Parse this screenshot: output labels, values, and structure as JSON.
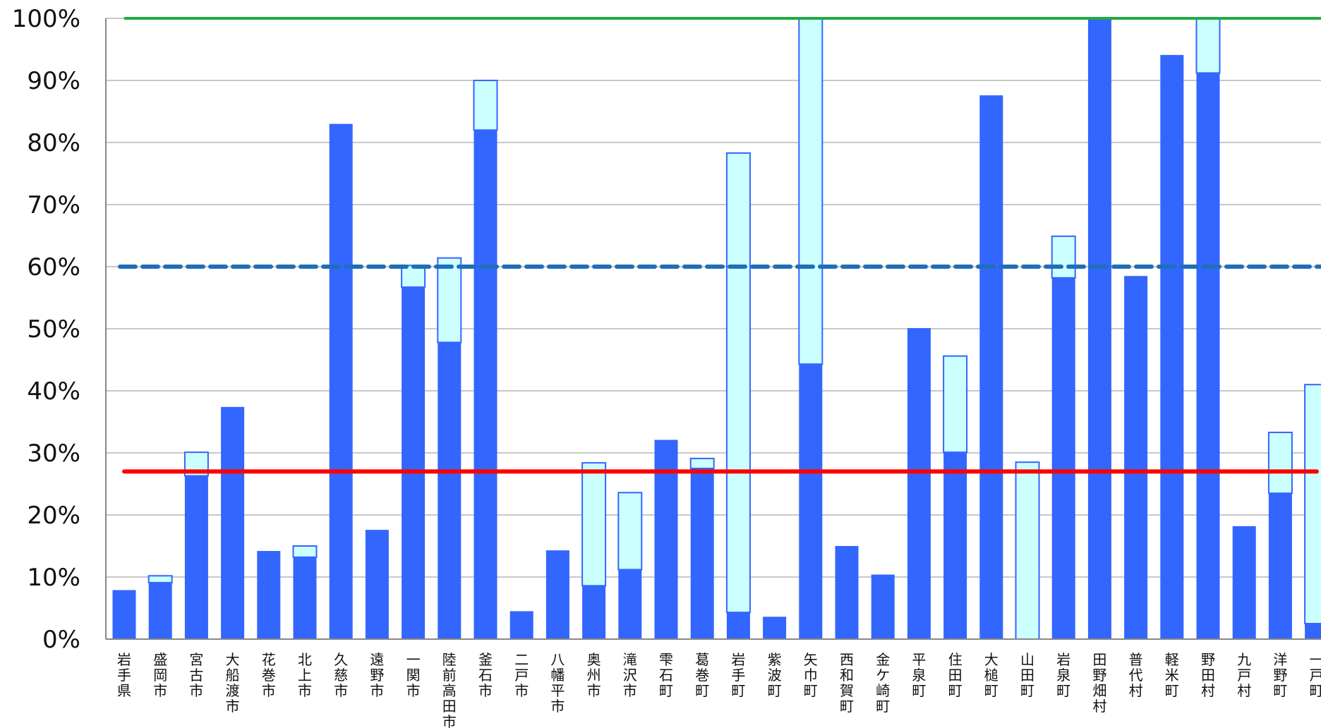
{
  "chart_data": {
    "type": "bar",
    "ylim": [
      0,
      100
    ],
    "y_ticks": [
      "0%",
      "10%",
      "20%",
      "30%",
      "40%",
      "50%",
      "60%",
      "70%",
      "80%",
      "90%",
      "100%"
    ],
    "grid": true,
    "categories": [
      "岩手県",
      "盛岡市",
      "宮古市",
      "大船渡市",
      "花巻市",
      "北上市",
      "久慈市",
      "遠野市",
      "一関市",
      "陸前高田市",
      "釜石市",
      "二戸市",
      "八幡平市",
      "奥州市",
      "滝沢市",
      "雫石町",
      "葛巻町",
      "岩手町",
      "紫波町",
      "矢巾町",
      "西和賀町",
      "金ケ崎町",
      "平泉町",
      "住田町",
      "大槌町",
      "山田町",
      "岩泉町",
      "田野畑村",
      "普代村",
      "軽米町",
      "野田村",
      "九戸村",
      "洋野町",
      "一戸町"
    ],
    "series": [
      {
        "values": [
          7.9,
          9.1,
          26.3,
          37.4,
          14.2,
          13.2,
          83.0,
          17.6,
          56.7,
          47.8,
          82.0,
          4.5,
          14.3,
          8.6,
          11.2,
          32.1,
          27.5,
          4.3,
          3.6,
          44.3,
          15.0,
          10.4,
          50.1,
          30.1,
          87.6,
          0,
          58.2,
          100,
          58.5,
          94.1,
          91.2,
          18.2,
          23.5,
          2.5
        ],
        "color": "#3366ff"
      },
      {
        "values": [
          0,
          1.1,
          3.8,
          0,
          0,
          1.8,
          0,
          0,
          3.5,
          13.6,
          8.0,
          0,
          0,
          19.8,
          12.4,
          0,
          1.6,
          74.0,
          0,
          55.7,
          0,
          0,
          0,
          15.5,
          0,
          28.5,
          6.7,
          0,
          0,
          0,
          8.8,
          0,
          9.8,
          38.5
        ],
        "color": "#ccffff"
      }
    ],
    "reference_lines": [
      {
        "value": 100,
        "color": "#22aa44",
        "style": "solid"
      },
      {
        "value": 60,
        "color": "#1f6fb8",
        "style": "dashed"
      },
      {
        "value": 27,
        "color": "#ff0000",
        "style": "solid"
      }
    ]
  }
}
